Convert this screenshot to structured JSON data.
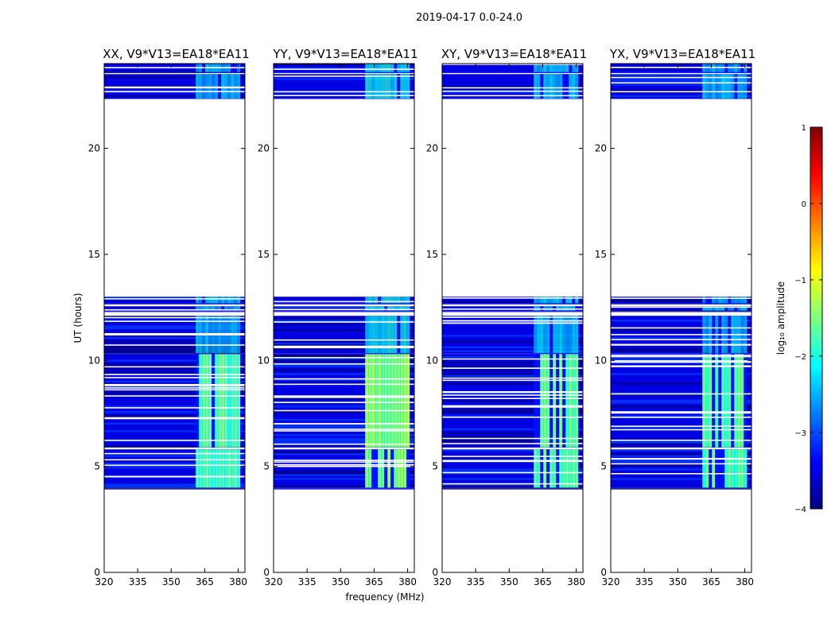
{
  "figure": {
    "suptitle": "2019-04-17 0.0-24.0",
    "xlabel": "frequency (MHz)",
    "ylabel": "UT (hours)"
  },
  "chart_data": {
    "type": "heatmap",
    "colormap": "jet",
    "colors": {
      "jet": [
        "#00007f",
        "#0000ff",
        "#007fff",
        "#00ffff",
        "#7fff7f",
        "#ffff00",
        "#ff7f00",
        "#ff0000",
        "#7f0000"
      ]
    },
    "xlim": [
      320,
      383
    ],
    "ylim": [
      0,
      24
    ],
    "xticks": [
      320,
      335,
      350,
      365,
      380
    ],
    "xtick_labels": [
      "320",
      "335",
      "350",
      "365",
      "380"
    ],
    "yticks": [
      0,
      5,
      10,
      15,
      20
    ],
    "ytick_labels": [
      "0",
      "5",
      "10",
      "15",
      "20"
    ],
    "time_blocks_hours": [
      [
        4.0,
        5.8
      ],
      [
        5.9,
        10.3
      ],
      [
        10.35,
        12.1
      ],
      [
        12.35,
        12.55
      ],
      [
        12.7,
        13.0
      ],
      [
        22.35,
        23.5
      ],
      [
        23.6,
        24.0
      ]
    ],
    "strong_band_mhz": [
      361,
      380
    ],
    "panels": [
      {
        "title": "XX, V9*V13=EA18*EA11",
        "band_level": -1.8
      },
      {
        "title": "YY, V9*V13=EA18*EA11",
        "band_level": -1.5
      },
      {
        "title": "XY, V9*V13=EA18*EA11",
        "band_level": -1.7
      },
      {
        "title": "YX, V9*V13=EA18*EA11",
        "band_level": -1.8
      }
    ],
    "colorbar": {
      "label": "log₁₀ amplitude",
      "range": [
        -4,
        1
      ],
      "ticks": [
        1,
        0,
        -1,
        -2,
        -3,
        -4
      ],
      "tick_labels": [
        "1",
        "0",
        "−1",
        "−2",
        "−3",
        "−4"
      ]
    }
  }
}
